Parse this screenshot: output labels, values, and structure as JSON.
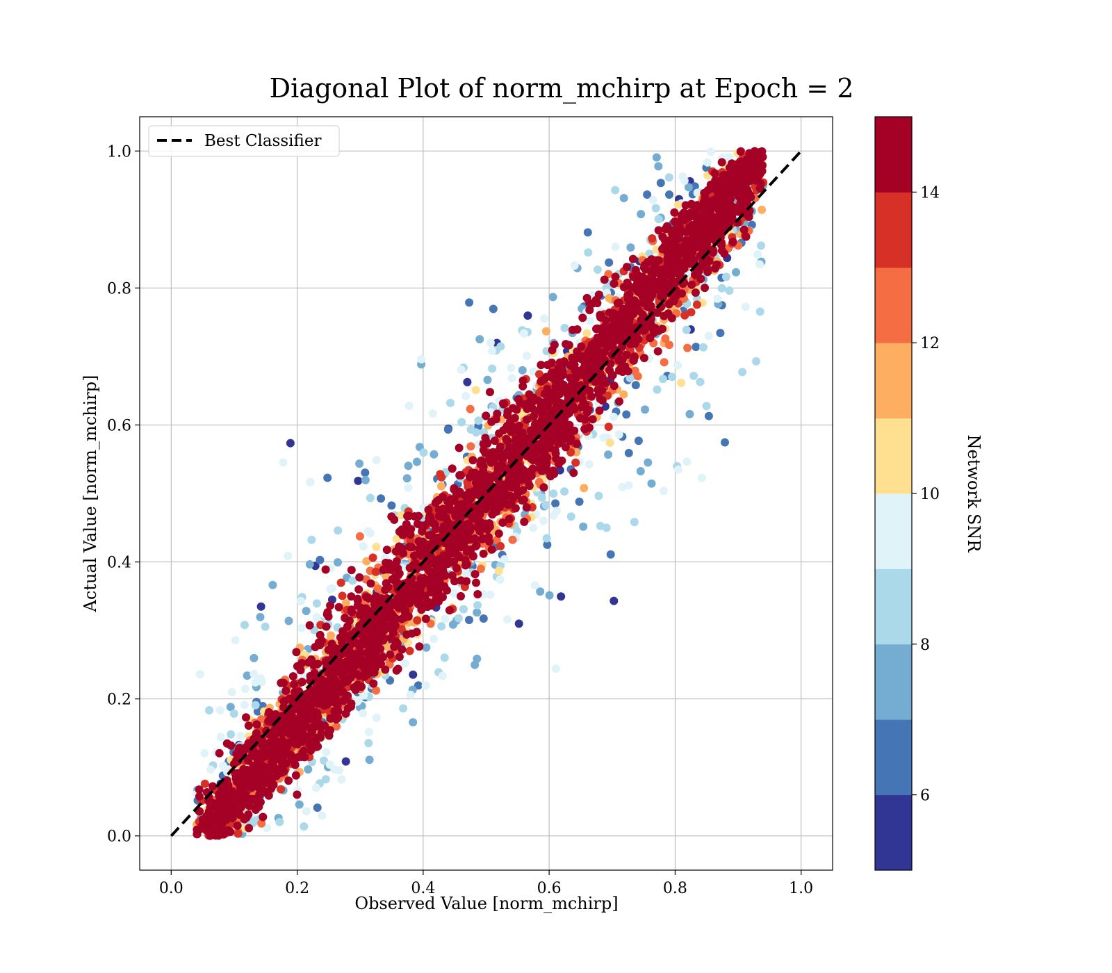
{
  "chart_data": {
    "type": "scatter",
    "title": "Diagonal Plot of norm_mchirp at Epoch = 2",
    "xlabel": "Observed Value [norm_mchirp]",
    "ylabel": "Actual Value [norm_mchirp]",
    "xlim": [
      -0.05,
      1.05
    ],
    "ylim": [
      -0.05,
      1.05
    ],
    "xticks": [
      "0.0",
      "0.2",
      "0.4",
      "0.6",
      "0.8",
      "1.0"
    ],
    "yticks": [
      "0.0",
      "0.2",
      "0.4",
      "0.6",
      "0.8",
      "1.0"
    ],
    "grid": true,
    "legend": {
      "position": "upper-left",
      "entries": [
        {
          "label": "Best Classifier",
          "style": "dashed",
          "color": "#000000"
        }
      ]
    },
    "reference_line": {
      "label": "Best Classifier",
      "x": [
        0.0,
        1.0
      ],
      "y": [
        0.0,
        1.0
      ]
    },
    "colorbar": {
      "label": "Network SNR",
      "range": [
        5,
        15
      ],
      "ticks": [
        "6",
        "8",
        "10",
        "12",
        "14"
      ],
      "colors": [
        "#313695",
        "#4575b4",
        "#74add1",
        "#abd9e9",
        "#e0f3f8",
        "#fee090",
        "#fdae61",
        "#f46d43",
        "#d73027",
        "#a50026"
      ]
    },
    "point_cloud": {
      "description_of_distribution": "points cluster along the diagonal; high SNR (>14) points tightly on diagonal, low SNR points spread away from it",
      "x_range": [
        0.05,
        0.93
      ],
      "y_range": [
        0.0,
        1.0
      ],
      "dense_high_snr_band": [
        {
          "x": 0.05,
          "y_low": 0.0,
          "y_high": 0.08
        },
        {
          "x": 0.2,
          "y_low": 0.11,
          "y_high": 0.28
        },
        {
          "x": 0.4,
          "y_low": 0.26,
          "y_high": 0.52
        },
        {
          "x": 0.6,
          "y_low": 0.44,
          "y_high": 0.74
        },
        {
          "x": 0.8,
          "y_low": 0.63,
          "y_high": 0.93
        },
        {
          "x": 0.93,
          "y_low": 0.82,
          "y_high": 1.0
        }
      ]
    }
  }
}
